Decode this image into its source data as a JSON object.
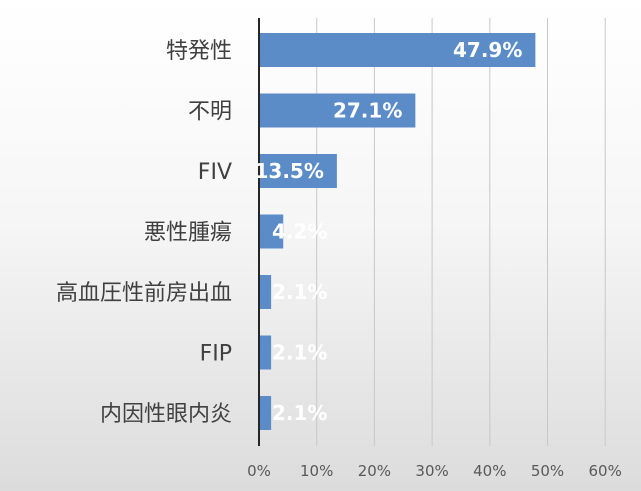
{
  "chart_data": {
    "type": "bar",
    "orientation": "horizontal",
    "categories": [
      "特発性",
      "不明",
      "FIV",
      "悪性腫瘍",
      "高血圧性前房出血",
      "FIP",
      "内因性眼内炎"
    ],
    "values": [
      47.9,
      27.1,
      13.5,
      4.2,
      2.1,
      2.1,
      2.1
    ],
    "data_labels": [
      "47.9%",
      "27.1%",
      "13.5%",
      "4.2%",
      "2.1%",
      "2.1%",
      "2.1%"
    ],
    "xlim": [
      0,
      60
    ],
    "x_ticks": [
      0,
      10,
      20,
      30,
      40,
      50,
      60
    ],
    "x_tick_labels": [
      "0%",
      "10%",
      "20%",
      "30%",
      "40%",
      "50%",
      "60%"
    ],
    "grid": "vertical",
    "legend": "none",
    "colors": {
      "bar": "#5b8cc8",
      "grid": "#c8c8c8",
      "axis": "#262626"
    }
  }
}
